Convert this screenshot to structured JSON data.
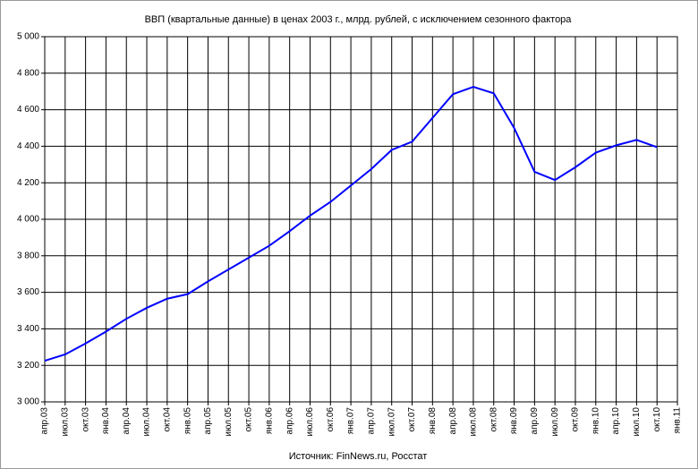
{
  "chart_data": {
    "type": "line",
    "title": "ВВП (квартальные данные) в ценах 2003 г., млрд. рублей, с исключением сезонного фактора",
    "source": "Источник: FinNews.ru, Росстат",
    "categories": [
      "апр.03",
      "июл.03",
      "окт.03",
      "янв.04",
      "апр.04",
      "июл.04",
      "окт.04",
      "янв.05",
      "апр.05",
      "июл.05",
      "окт.05",
      "янв.06",
      "апр.06",
      "июл.06",
      "окт.06",
      "янв.07",
      "апр.07",
      "июл.07",
      "окт.07",
      "янв.08",
      "апр.08",
      "июл.08",
      "окт.08",
      "янв.09",
      "апр.09",
      "июл.09",
      "окт.09",
      "янв.10",
      "апр.10",
      "июл.10",
      "окт.10",
      "янв.11"
    ],
    "series": [
      {
        "name": "ВВП",
        "color": "#0000ff",
        "values": [
          3225,
          3260,
          3320,
          3385,
          3455,
          3515,
          3565,
          3590,
          3660,
          3725,
          3790,
          3855,
          3935,
          4020,
          4095,
          4185,
          4275,
          4380,
          4425,
          4555,
          4685,
          4725,
          4690,
          4500,
          4260,
          4215,
          4285,
          4365,
          4405,
          4435,
          4395,
          null
        ]
      }
    ],
    "ylim": [
      3000,
      5000
    ],
    "yticks": [
      {
        "value": 3000,
        "label": "3 000"
      },
      {
        "value": 3200,
        "label": "3 200"
      },
      {
        "value": 3400,
        "label": "3 400"
      },
      {
        "value": 3600,
        "label": "3 600"
      },
      {
        "value": 3800,
        "label": "3 800"
      },
      {
        "value": 4000,
        "label": "4 000"
      },
      {
        "value": 4200,
        "label": "4 200"
      },
      {
        "value": 4400,
        "label": "4 400"
      },
      {
        "value": 4600,
        "label": "4 600"
      },
      {
        "value": 4800,
        "label": "4 800"
      },
      {
        "value": 5000,
        "label": "5 000"
      }
    ],
    "grid": true
  }
}
